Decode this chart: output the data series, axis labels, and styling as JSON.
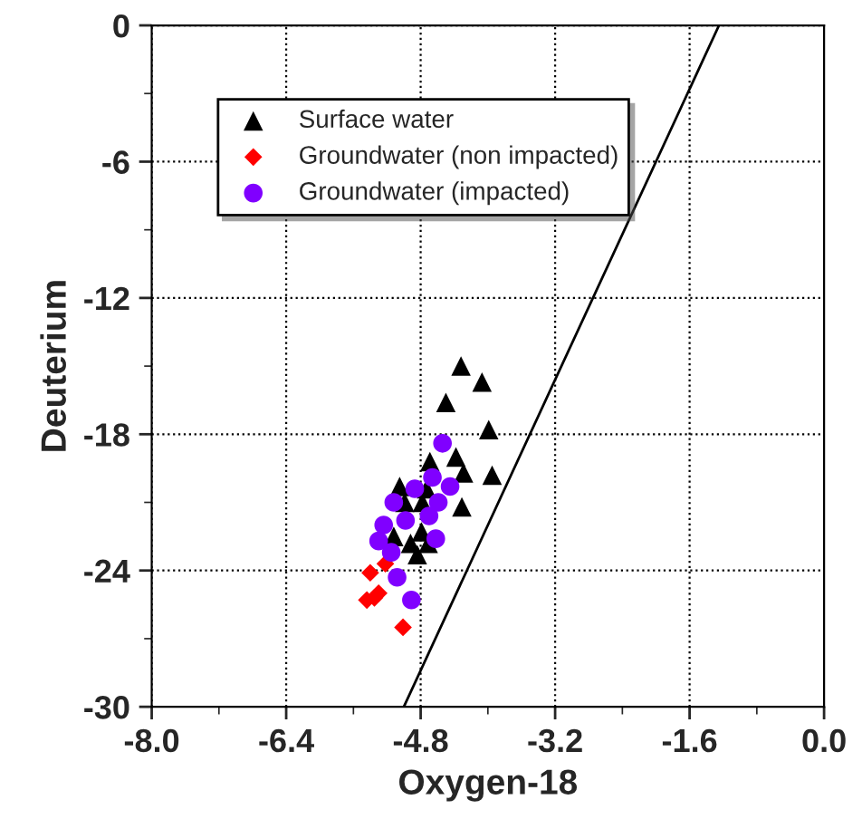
{
  "chart_data": {
    "type": "scatter",
    "xlabel": "Oxygen-18",
    "ylabel": "Deuterium",
    "xlim": [
      -8.0,
      0.0
    ],
    "ylim": [
      -30,
      0
    ],
    "xticks": [
      {
        "value": -8.0,
        "label": "-8.0"
      },
      {
        "value": -7.2,
        "label": null
      },
      {
        "value": -6.4,
        "label": "-6.4"
      },
      {
        "value": -5.6,
        "label": null
      },
      {
        "value": -4.8,
        "label": "-4.8"
      },
      {
        "value": -4.0,
        "label": null
      },
      {
        "value": -3.2,
        "label": "-3.2"
      },
      {
        "value": -2.4,
        "label": null
      },
      {
        "value": -1.6,
        "label": "-1.6"
      },
      {
        "value": -0.8,
        "label": null
      },
      {
        "value": 0.0,
        "label": "0.0"
      }
    ],
    "yticks": [
      -30,
      {
        "value": -27,
        "label": null
      },
      -24,
      {
        "value": -21,
        "label": null
      },
      -18,
      {
        "value": -15,
        "label": null
      },
      -12,
      {
        "value": -9,
        "label": null
      },
      -6,
      {
        "value": -3,
        "label": null
      },
      0
    ],
    "grid": true,
    "legend": "top left",
    "series": [
      {
        "name": "Surface water",
        "marker": "triangle",
        "color": "#000000",
        "x": [
          -4.32,
          -4.07,
          -4.5,
          -3.99,
          -4.69,
          -4.38,
          -4.29,
          -3.95,
          -5.05,
          -4.73,
          -4.99,
          -4.78,
          -4.31,
          -5.12,
          -4.79,
          -4.92,
          -4.71,
          -4.84
        ],
        "values": [
          -15.0,
          -15.7,
          -16.6,
          -17.8,
          -19.2,
          -19.0,
          -19.7,
          -19.8,
          -20.3,
          -20.4,
          -21.0,
          -21.0,
          -21.2,
          -22.5,
          -22.3,
          -22.8,
          -22.8,
          -23.3
        ]
      },
      {
        "name": "Groundwater (non impacted)",
        "marker": "diamond",
        "color": "#ff0000",
        "x": [
          -5.4,
          -5.22,
          -5.3,
          -5.44,
          -5.35,
          -5.01
        ],
        "values": [
          -24.1,
          -23.7,
          -25.0,
          -25.3,
          -25.2,
          -26.5
        ]
      },
      {
        "name": "Groundwater (impacted)",
        "marker": "circle",
        "color": "#8000ff",
        "x": [
          -4.54,
          -4.66,
          -4.87,
          -4.45,
          -5.12,
          -4.59,
          -4.7,
          -5.24,
          -4.98,
          -5.3,
          -4.62,
          -5.15,
          -5.08,
          -4.91
        ],
        "values": [
          -18.4,
          -19.9,
          -20.4,
          -20.3,
          -21.0,
          -21.0,
          -21.6,
          -22.0,
          -21.8,
          -22.7,
          -22.6,
          -23.2,
          -24.3,
          -25.3
        ]
      },
      {
        "type": "line",
        "marker": "none",
        "color": "#000000",
        "x": [
          -5.0,
          -1.25
        ],
        "values": [
          -30,
          0
        ]
      }
    ]
  }
}
